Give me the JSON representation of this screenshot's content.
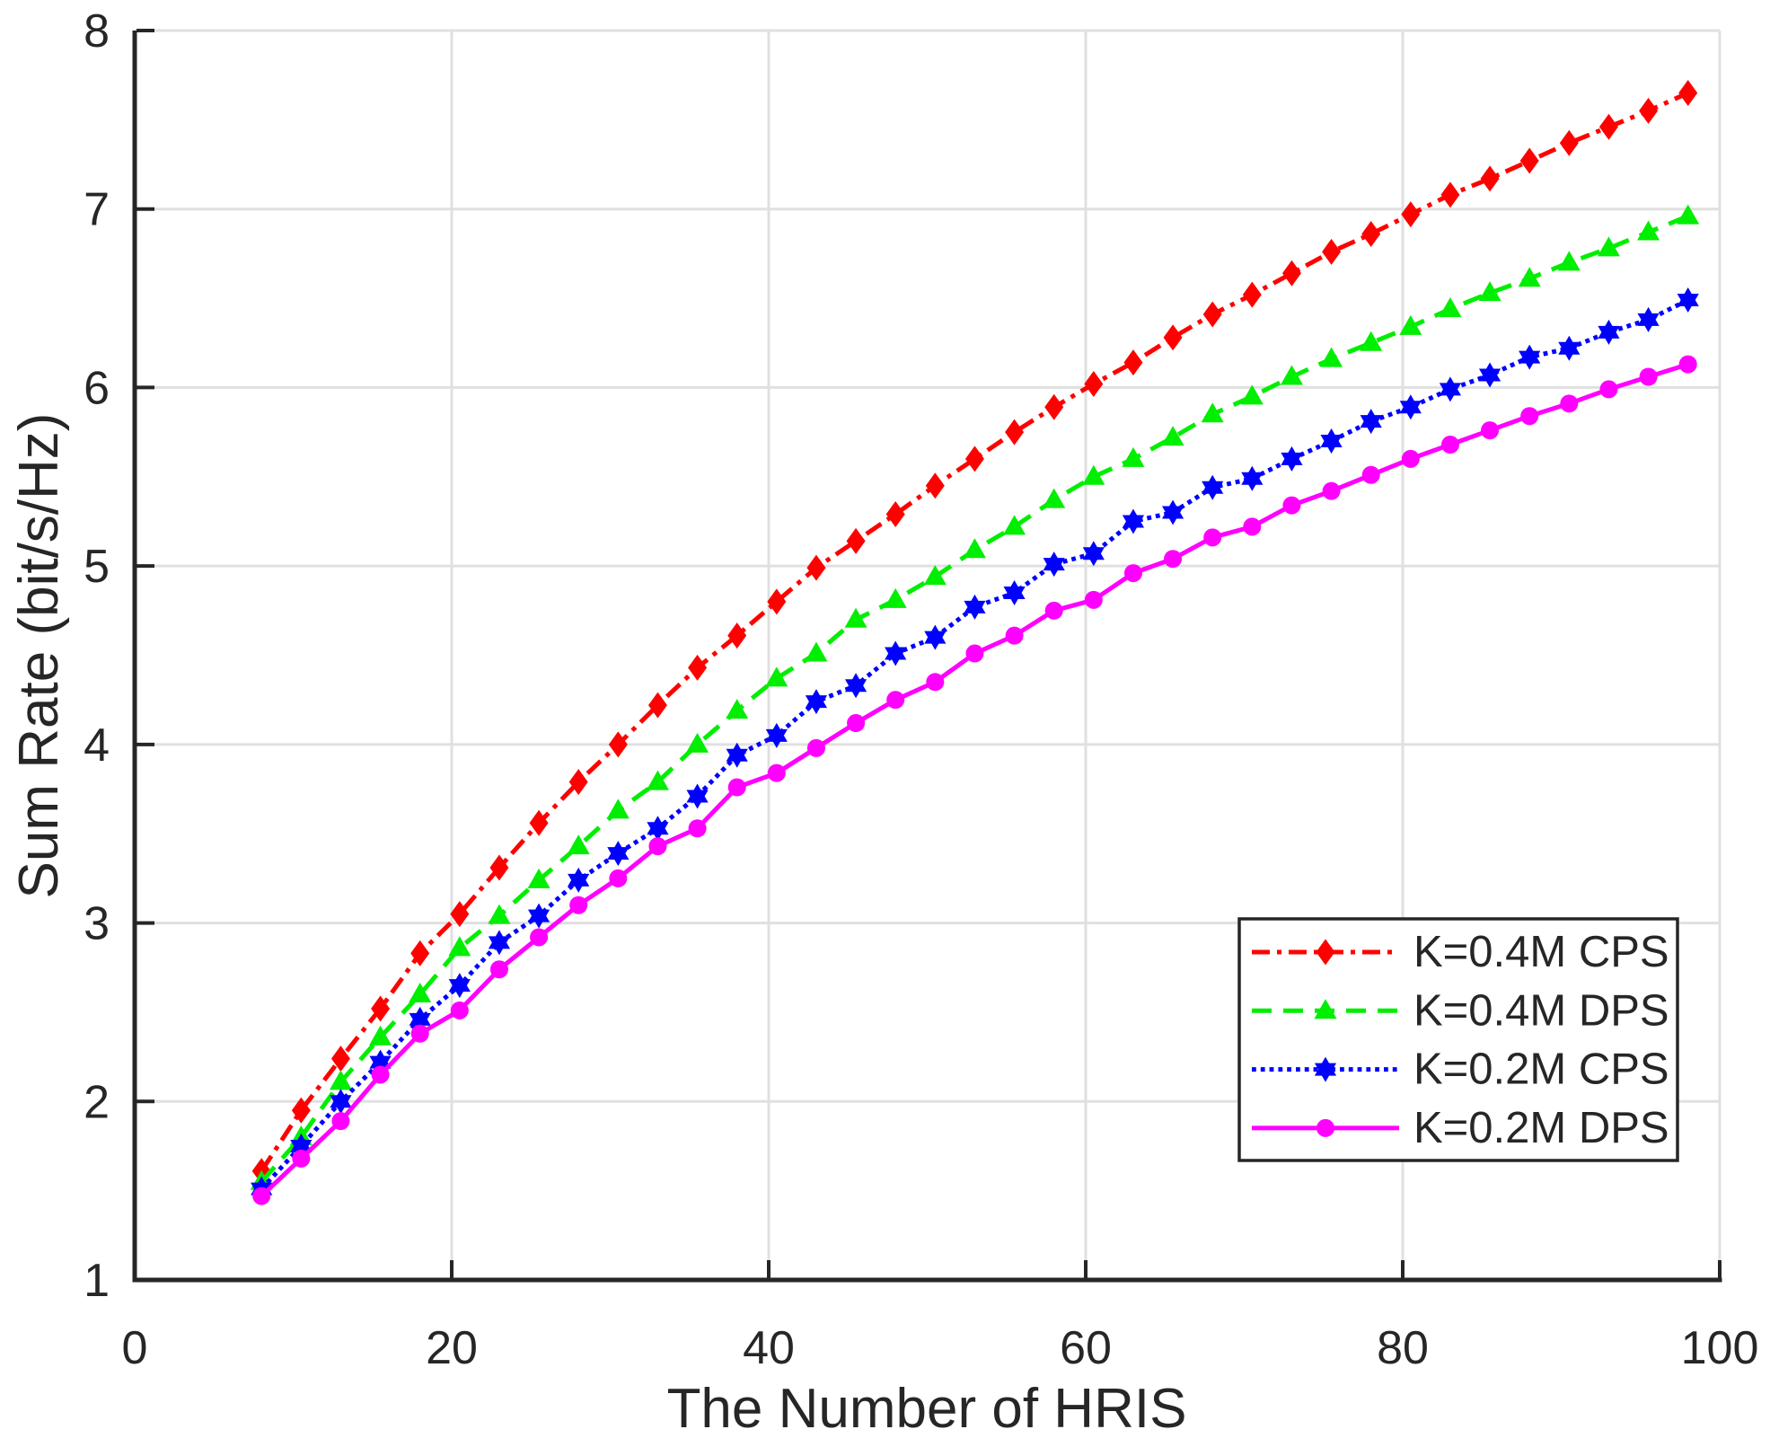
{
  "style": {
    "background": "#ffffff",
    "axis_color": "#262626",
    "grid_color": "#e0e0e0",
    "legend_border_color": "#262626",
    "legend_background": "#ffffff"
  },
  "chart_data": {
    "type": "line",
    "title": "",
    "xlabel": "The Number of HRIS",
    "ylabel": "Sum Rate (bit/s/Hz)",
    "xlim": [
      0,
      100
    ],
    "ylim": [
      1,
      8
    ],
    "x_ticks": [
      0,
      20,
      40,
      60,
      80,
      100
    ],
    "y_ticks": [
      1,
      2,
      3,
      4,
      5,
      6,
      7,
      8
    ],
    "grid": true,
    "legend_position": "lower right",
    "x": [
      8,
      10.5,
      13,
      15.5,
      18,
      20.5,
      23,
      25.5,
      28,
      30.5,
      33,
      35.5,
      38,
      40.5,
      43,
      45.5,
      48,
      50.5,
      53,
      55.5,
      58,
      60.5,
      63,
      65.5,
      68,
      70.5,
      73,
      75.5,
      78,
      80.5,
      83,
      85.5,
      88,
      90.5,
      93,
      95.5,
      98
    ],
    "series": [
      {
        "name": "K=0.4M CPS",
        "color": "#ff0000",
        "line_style": "dash-dot",
        "marker": "diamond",
        "values": [
          1.61,
          1.95,
          2.24,
          2.52,
          2.83,
          3.05,
          3.31,
          3.56,
          3.79,
          4.0,
          4.22,
          4.43,
          4.61,
          4.8,
          4.99,
          5.14,
          5.29,
          5.45,
          5.6,
          5.75,
          5.89,
          6.02,
          6.14,
          6.28,
          6.41,
          6.52,
          6.64,
          6.76,
          6.86,
          6.97,
          7.08,
          7.17,
          7.27,
          7.37,
          7.46,
          7.55,
          7.65
        ]
      },
      {
        "name": "K=0.4M DPS",
        "color": "#00ee00",
        "line_style": "dashed",
        "marker": "triangle-up",
        "values": [
          1.55,
          1.8,
          2.11,
          2.36,
          2.6,
          2.86,
          3.04,
          3.24,
          3.43,
          3.63,
          3.79,
          4.0,
          4.19,
          4.37,
          4.51,
          4.7,
          4.81,
          4.94,
          5.09,
          5.22,
          5.37,
          5.5,
          5.6,
          5.72,
          5.85,
          5.95,
          6.06,
          6.16,
          6.25,
          6.34,
          6.44,
          6.53,
          6.61,
          6.7,
          6.78,
          6.87,
          6.96
        ]
      },
      {
        "name": "K=0.2M CPS",
        "color": "#0000ff",
        "line_style": "dotted",
        "marker": "hexagram",
        "values": [
          1.51,
          1.75,
          2.0,
          2.22,
          2.46,
          2.65,
          2.89,
          3.04,
          3.24,
          3.39,
          3.53,
          3.71,
          3.94,
          4.05,
          4.24,
          4.33,
          4.51,
          4.6,
          4.77,
          4.85,
          5.01,
          5.07,
          5.25,
          5.3,
          5.44,
          5.49,
          5.6,
          5.7,
          5.81,
          5.89,
          5.99,
          6.07,
          6.17,
          6.22,
          6.31,
          6.38,
          6.49
        ]
      },
      {
        "name": "K=0.2M DPS",
        "color": "#ff00ff",
        "line_style": "solid",
        "marker": "circle",
        "values": [
          1.47,
          1.68,
          1.89,
          2.15,
          2.38,
          2.51,
          2.74,
          2.92,
          3.1,
          3.25,
          3.43,
          3.53,
          3.76,
          3.84,
          3.98,
          4.12,
          4.25,
          4.35,
          4.51,
          4.61,
          4.75,
          4.81,
          4.96,
          5.04,
          5.16,
          5.22,
          5.34,
          5.42,
          5.51,
          5.6,
          5.68,
          5.76,
          5.84,
          5.91,
          5.99,
          6.06,
          6.13
        ]
      }
    ]
  }
}
